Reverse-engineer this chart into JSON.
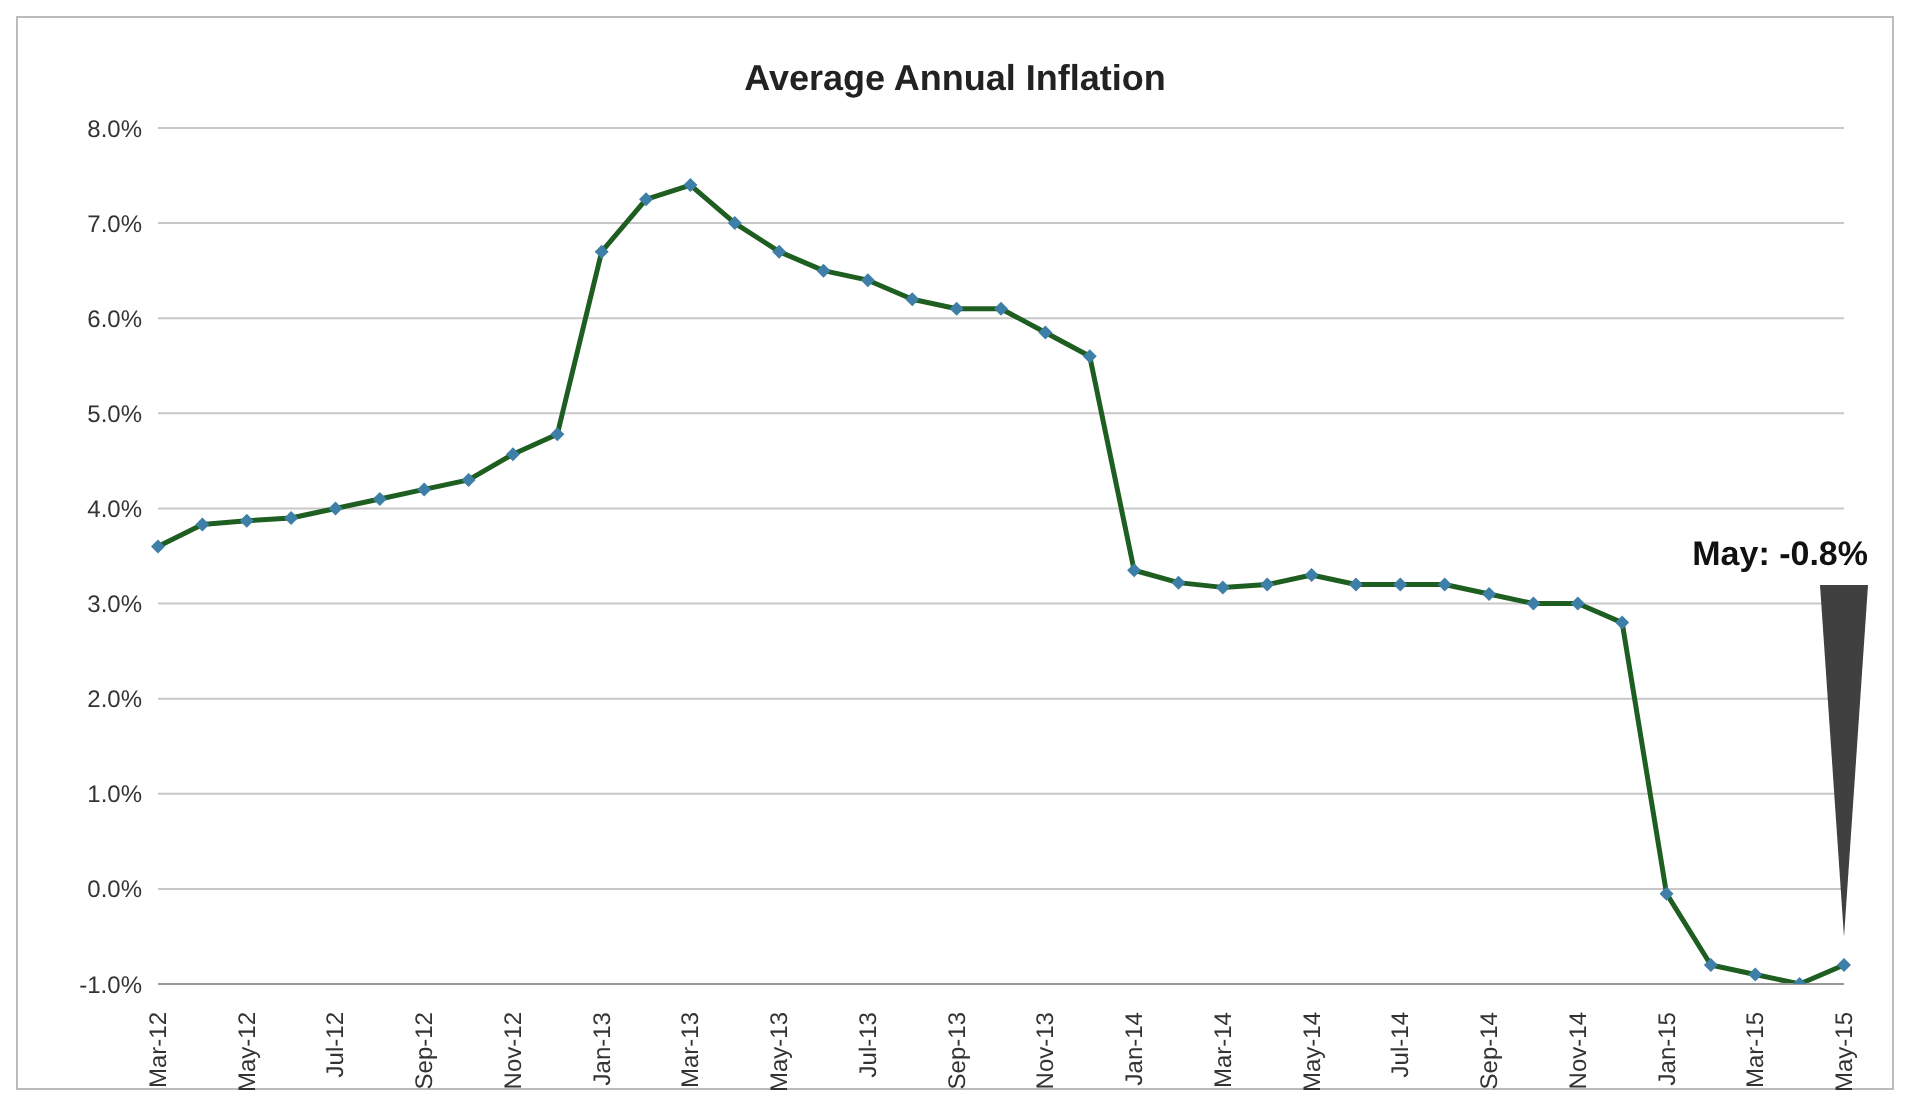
{
  "chart_data": {
    "type": "line",
    "title": "Average Annual Inflation",
    "categories": [
      "Mar-12",
      null,
      "May-12",
      null,
      "Jul-12",
      null,
      "Sep-12",
      null,
      "Nov-12",
      null,
      "Jan-13",
      null,
      "Mar-13",
      null,
      "May-13",
      null,
      "Jul-13",
      null,
      "Sep-13",
      null,
      "Nov-13",
      null,
      "Jan-14",
      null,
      "Mar-14",
      null,
      "May-14",
      null,
      "Jul-14",
      null,
      "Sep-14",
      null,
      "Nov-14",
      null,
      "Jan-15",
      null,
      "Mar-15",
      null,
      "May-15"
    ],
    "series": [
      {
        "color": "#1e5e20",
        "values": [
          3.6,
          3.83,
          3.87,
          3.9,
          4.0,
          4.1,
          4.2,
          4.3,
          4.57,
          4.78,
          6.7,
          7.25,
          7.4,
          7.0,
          6.7,
          6.5,
          6.4,
          6.2,
          6.1,
          6.1,
          5.85,
          5.6,
          3.35,
          3.22,
          3.17,
          3.2,
          3.3,
          3.2,
          3.2,
          3.2,
          3.1,
          3.0,
          3.0,
          2.8,
          -0.05,
          -0.8,
          -0.9,
          -1.0,
          -0.8
        ]
      }
    ],
    "ylim": [
      -1,
      8
    ],
    "yticks": [
      {
        "value": -1,
        "label": "-1.0%"
      },
      {
        "value": 0,
        "label": "0.0%"
      },
      {
        "value": 1,
        "label": "1.0%"
      },
      {
        "value": 2,
        "label": "2.0%"
      },
      {
        "value": 3,
        "label": "3.0%"
      },
      {
        "value": 4,
        "label": "4.0%"
      },
      {
        "value": 5,
        "label": "5.0%"
      },
      {
        "value": 6,
        "label": "6.0%"
      },
      {
        "value": 7,
        "label": "7.0%"
      },
      {
        "value": 8,
        "label": "8.0%"
      }
    ],
    "grid": "y",
    "legend": false,
    "marker": "diamond",
    "line_style": "solid",
    "annotations": [
      "May: -0.8%"
    ]
  }
}
